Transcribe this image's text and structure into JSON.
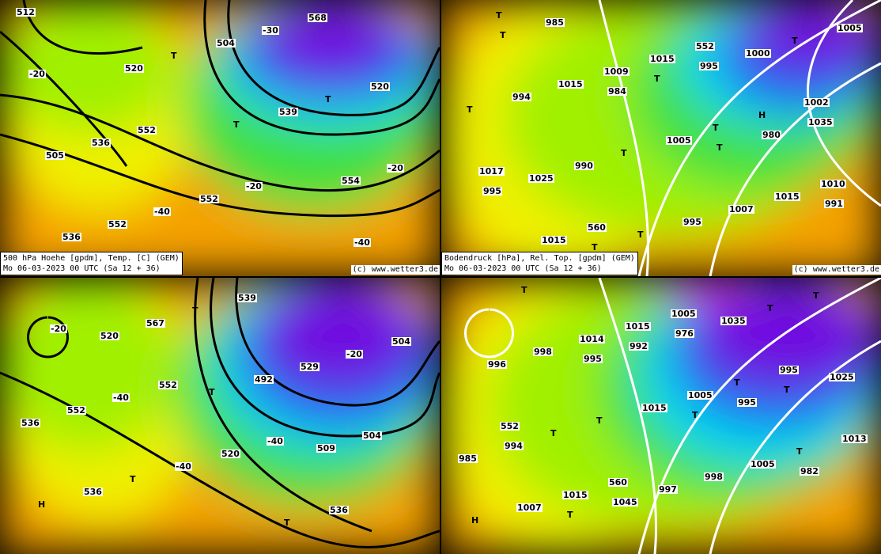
{
  "colors": {
    "orange": "#f5a000",
    "yellow": "#f0f000",
    "lime": "#a0f000",
    "green": "#40e040",
    "cyan": "#00d8f0",
    "blue": "#1060f0",
    "purple": "#7010e0",
    "magenta": "#e000f0"
  },
  "panels": [
    {
      "id": "top-left",
      "caption_line1": "500 hPa Hoehe [gpdm], Temp. [C] (GEM)",
      "caption_line2": "Mo 06-03-2023 00 UTC (Sa 12 + 36)",
      "credit": "(c) www.wetter3.de",
      "labels": [
        "512",
        "520",
        "T",
        "554",
        "536",
        "T",
        "539",
        "-20",
        "552",
        "504",
        "T",
        "505",
        "-40",
        "-30",
        "520",
        "536",
        "552",
        "568",
        "-20",
        "552",
        "-20",
        "-40"
      ]
    },
    {
      "id": "top-right",
      "caption_line1": "Bodendruck [hPa], Rel. Top. [gpdm] (GEM)",
      "caption_line2": "Mo 06-03-2023 00 UTC (Sa 12 + 36)",
      "credit": "(c) www.wetter3.de",
      "labels": [
        "T",
        "984",
        "T",
        "991",
        "985",
        "T",
        "980",
        "995",
        "T",
        "995",
        "1035",
        "1025",
        "T",
        "1000",
        "T",
        "990",
        "995",
        "T",
        "994",
        "T",
        "1007",
        "1005",
        "1015",
        "1005",
        "1015",
        "T",
        "1009",
        "T",
        "1010",
        "1015",
        "1015",
        "H",
        "1017",
        "560",
        "552",
        "1002"
      ]
    },
    {
      "id": "bottom-left",
      "caption_line1": "",
      "caption_line2": "",
      "credit": "",
      "labels": [
        "520",
        "T",
        "509",
        "H",
        "567",
        "492",
        "504",
        "536",
        "T",
        "529",
        "536",
        "T",
        "539",
        "-20",
        "552",
        "-40",
        "T",
        "504",
        "-40",
        "520",
        "536",
        "-20",
        "552",
        "-40"
      ]
    },
    {
      "id": "bottom-right",
      "caption_line1": "",
      "caption_line2": "",
      "credit": "",
      "labels": [
        "995",
        "T",
        "982",
        "T",
        "992",
        "995",
        "985",
        "T",
        "976",
        "T",
        "994",
        "1045",
        "1035",
        "1025",
        "T",
        "997",
        "T",
        "996",
        "T",
        "998",
        "T",
        "998",
        "1015",
        "1005",
        "H",
        "1014",
        "1005",
        "T",
        "1007",
        "1015",
        "T",
        "1013",
        "1015",
        "1005",
        "995",
        "552",
        "560"
      ]
    }
  ]
}
